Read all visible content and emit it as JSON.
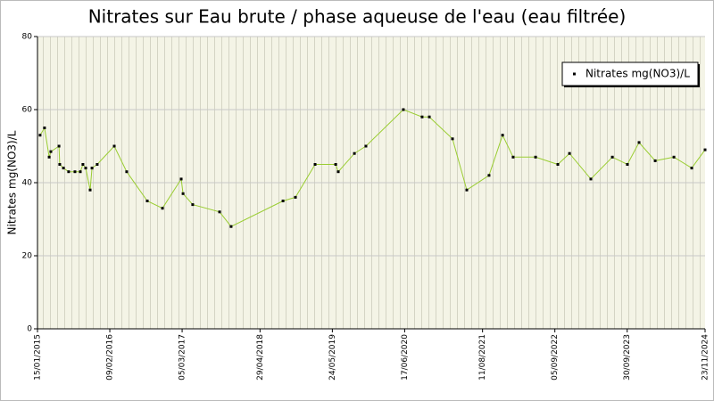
{
  "chart_data": {
    "type": "line",
    "title": "Nitrates sur Eau brute / phase aqueuse de l'eau (eau filtrée)",
    "y_label": "Nitrates mg(NO3)/L",
    "legend_position": "upper right",
    "grid": true,
    "x": [
      "2015-01-29",
      "2015-02-22",
      "2015-03-19",
      "2015-03-28",
      "2015-05-11",
      "2015-05-15",
      "2015-06-04",
      "2015-07-02",
      "2015-08-05",
      "2015-09-03",
      "2015-09-17",
      "2015-10-02",
      "2015-10-26",
      "2015-11-05",
      "2015-12-03",
      "2016-03-04",
      "2016-05-10",
      "2016-08-29",
      "2016-11-19",
      "2017-02-28",
      "2017-03-10",
      "2017-05-01",
      "2017-09-23",
      "2017-11-24",
      "2018-08-31",
      "2018-11-06",
      "2019-02-20",
      "2019-06-11",
      "2019-06-25",
      "2019-09-20",
      "2019-11-21",
      "2020-06-10",
      "2020-09-19",
      "2020-10-28",
      "2021-03-02",
      "2021-05-18",
      "2021-09-15",
      "2021-11-27",
      "2022-01-23",
      "2022-05-24",
      "2022-09-21",
      "2022-11-23",
      "2023-03-18",
      "2023-07-12",
      "2023-10-01",
      "2023-12-03",
      "2024-02-28",
      "2024-06-08",
      "2024-09-12",
      "2024-11-23"
    ],
    "series": [
      {
        "name": "Nitrates mg(NO3)/L",
        "color": "#9acd32",
        "marker_color": "#000000",
        "values": [
          53,
          55,
          47,
          48.5,
          50,
          45,
          44,
          43,
          43,
          43,
          45,
          44,
          38,
          44,
          45,
          50,
          43,
          35,
          33,
          41,
          37,
          34,
          32,
          28,
          35,
          36,
          45,
          45,
          43,
          48,
          50,
          60,
          58,
          58,
          52,
          38,
          42,
          53,
          47,
          47,
          45,
          48,
          41,
          47,
          45,
          51,
          46,
          47,
          44,
          49
        ]
      }
    ],
    "xlim": [
      "2015-01-15",
      "2024-11-23"
    ],
    "xticks": [
      {
        "value": "2015-01-15",
        "label": "15/01/2015"
      },
      {
        "value": "2016-02-09",
        "label": "09/02/2016"
      },
      {
        "value": "2017-03-05",
        "label": "05/03/2017"
      },
      {
        "value": "2018-04-29",
        "label": "29/04/2018"
      },
      {
        "value": "2019-05-24",
        "label": "24/05/2019"
      },
      {
        "value": "2020-06-17",
        "label": "17/06/2020"
      },
      {
        "value": "2021-08-11",
        "label": "11/08/2021"
      },
      {
        "value": "2022-09-05",
        "label": "05/09/2022"
      },
      {
        "value": "2023-09-30",
        "label": "30/09/2023"
      },
      {
        "value": "2024-11-23",
        "label": "23/11/2024"
      }
    ],
    "ylim": [
      0,
      80
    ],
    "yticks": [
      0,
      20,
      40,
      60,
      80
    ]
  }
}
